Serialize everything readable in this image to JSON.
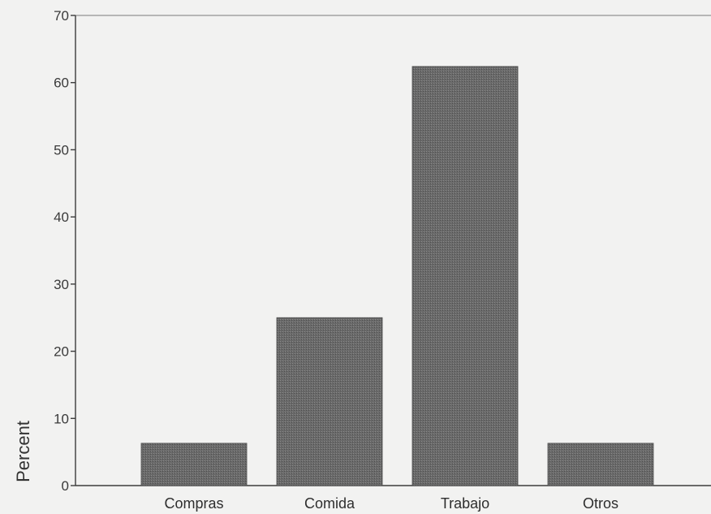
{
  "chart_data": {
    "type": "bar",
    "title": "",
    "xlabel": "",
    "ylabel": "Percent",
    "categories": [
      "Compras",
      "Comida",
      "Trabajo",
      "Otros"
    ],
    "values": [
      6.3,
      25.0,
      62.4,
      6.3
    ],
    "ylim": [
      0,
      70
    ],
    "yticks": [
      0,
      10,
      20,
      30,
      40,
      50,
      60,
      70
    ],
    "grid": false,
    "legend": "none",
    "bar_color": "#6a6a6a"
  }
}
